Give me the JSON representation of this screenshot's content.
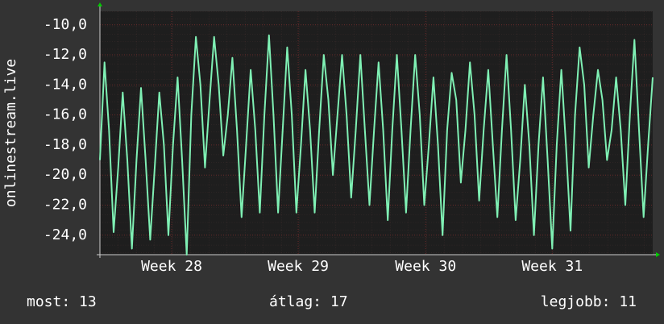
{
  "chart_data": {
    "type": "line",
    "y_label": "onlinestream.live",
    "series": [
      {
        "name": "onlinestream.live",
        "color": "#7ff0b4",
        "values": [
          -19.0,
          -12.5,
          -17,
          -23.8,
          -19.5,
          -14.5,
          -19,
          -24.9,
          -19,
          -14.2,
          -19,
          -24.3,
          -19.5,
          -14.5,
          -18,
          -24.0,
          -18,
          -13.5,
          -19,
          -25.3,
          -16,
          -10.8,
          -14,
          -19.5,
          -15,
          -10.8,
          -14,
          -18.7,
          -16,
          -12.2,
          -17,
          -22.8,
          -18,
          -13.0,
          -17,
          -22.5,
          -16,
          -10.7,
          -16,
          -22.5,
          -17,
          -11.5,
          -16,
          -22.5,
          -18,
          -13.0,
          -17,
          -22.5,
          -17,
          -12.0,
          -15,
          -20.0,
          -16,
          -12.0,
          -16,
          -21.5,
          -17,
          -12.0,
          -17,
          -22.0,
          -17,
          -12.5,
          -17,
          -23.0,
          -17,
          -12.0,
          -17,
          -22.5,
          -17,
          -12.0,
          -16,
          -22.0,
          -18,
          -13.5,
          -18,
          -24.0,
          -17,
          -13.2,
          -15,
          -20.5,
          -17,
          -12.5,
          -16,
          -21.7,
          -17,
          -13.0,
          -18,
          -22.8,
          -17,
          -12.0,
          -17,
          -23.0,
          -19,
          -14.0,
          -18,
          -24.0,
          -18,
          -13.5,
          -19,
          -24.9,
          -18,
          -13.0,
          -18,
          -23.7,
          -16,
          -11.5,
          -14,
          -19.5,
          -16,
          -13.0,
          -15,
          -19.0,
          -17,
          -13.5,
          -17,
          -22.0,
          -16,
          -11.0,
          -17,
          -22.8,
          -18,
          -13.5
        ]
      }
    ],
    "xlim": [
      0,
      121
    ],
    "xticks": [
      {
        "value": 15.7,
        "label": "Week 28"
      },
      {
        "value": 43.4,
        "label": "Week 29"
      },
      {
        "value": 71.3,
        "label": "Week 30"
      },
      {
        "value": 99.0,
        "label": "Week 31"
      }
    ],
    "ylim": [
      -25.3,
      -9.1
    ],
    "yticks": [
      {
        "value": -10,
        "label": "-10,0"
      },
      {
        "value": -12,
        "label": "-12,0"
      },
      {
        "value": -14,
        "label": "-14,0"
      },
      {
        "value": -16,
        "label": "-16,0"
      },
      {
        "value": -18,
        "label": "-18,0"
      },
      {
        "value": -20,
        "label": "-20,0"
      },
      {
        "value": -22,
        "label": "-22,0"
      },
      {
        "value": -24,
        "label": "-24,0"
      }
    ],
    "grid": true,
    "footer": [
      "most: 13",
      "átlag: 17",
      "legjobb: 11"
    ]
  }
}
